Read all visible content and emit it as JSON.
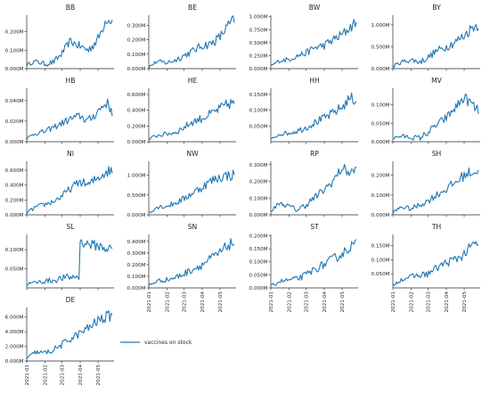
{
  "chart_data": {
    "type": "line",
    "layout": "small-multiples",
    "series_color": "#1f77b4",
    "x_tick_labels": [
      "2021-01",
      "2021-02",
      "2021-03",
      "2021-04",
      "2021-05"
    ],
    "legend": {
      "label": "vaccines on stock",
      "placement": "bottom-center"
    },
    "grid": false,
    "panels": [
      {
        "title": "BB",
        "ylim": [
          0,
          0.29
        ],
        "yticks": [
          0.0,
          0.1,
          0.2
        ],
        "yticklabels": [
          "0.000M",
          "0.100M",
          "0.200M"
        ],
        "x": [
          "2021-01-01",
          "2021-01-15",
          "2021-02-01",
          "2021-02-15",
          "2021-03-01",
          "2021-03-15",
          "2021-04-01",
          "2021-04-15",
          "2021-05-01",
          "2021-05-15",
          "2021-05-25"
        ],
        "y": [
          0.02,
          0.04,
          0.025,
          0.035,
          0.08,
          0.15,
          0.12,
          0.1,
          0.16,
          0.27,
          0.26
        ]
      },
      {
        "title": "BE",
        "ylim": [
          0,
          0.37
        ],
        "yticks": [
          0.0,
          0.1,
          0.2,
          0.3
        ],
        "yticklabels": [
          "0.000M",
          "0.100M",
          "0.200M",
          "0.300M"
        ],
        "x": [
          "2021-01-01",
          "2021-01-15",
          "2021-02-01",
          "2021-02-15",
          "2021-03-01",
          "2021-03-15",
          "2021-04-01",
          "2021-04-15",
          "2021-05-01",
          "2021-05-15",
          "2021-05-25"
        ],
        "y": [
          0.01,
          0.05,
          0.04,
          0.06,
          0.09,
          0.12,
          0.16,
          0.17,
          0.22,
          0.3,
          0.34
        ]
      },
      {
        "title": "BW",
        "ylim": [
          0,
          1.03
        ],
        "yticks": [
          0.0,
          0.25,
          0.5,
          0.75,
          1.0
        ],
        "yticklabels": [
          "0.000M",
          "0.250M",
          "0.500M",
          "0.750M",
          "1.000M"
        ],
        "x": [
          "2021-01-01",
          "2021-01-15",
          "2021-02-01",
          "2021-02-15",
          "2021-03-01",
          "2021-03-15",
          "2021-04-01",
          "2021-04-15",
          "2021-05-01",
          "2021-05-15",
          "2021-05-25"
        ],
        "y": [
          0.05,
          0.15,
          0.18,
          0.25,
          0.3,
          0.4,
          0.45,
          0.55,
          0.65,
          0.8,
          0.9
        ]
      },
      {
        "title": "BY",
        "ylim": [
          0,
          1.22
        ],
        "yticks": [
          0.0,
          0.5,
          1.0
        ],
        "yticklabels": [
          "0.000M",
          "0.500M",
          "1.000M"
        ],
        "x": [
          "2021-01-01",
          "2021-01-15",
          "2021-02-01",
          "2021-02-15",
          "2021-03-01",
          "2021-03-15",
          "2021-04-01",
          "2021-04-15",
          "2021-05-01",
          "2021-05-15",
          "2021-05-25"
        ],
        "y": [
          0.05,
          0.15,
          0.2,
          0.15,
          0.25,
          0.4,
          0.5,
          0.6,
          0.75,
          0.95,
          1.0
        ]
      },
      {
        "title": "HB",
        "ylim": [
          0,
          0.052
        ],
        "yticks": [
          0.0,
          0.02,
          0.04
        ],
        "yticklabels": [
          "0.000M",
          "0.020M",
          "0.040M"
        ],
        "x": [
          "2021-01-01",
          "2021-01-15",
          "2021-02-01",
          "2021-02-15",
          "2021-03-01",
          "2021-03-15",
          "2021-04-01",
          "2021-04-15",
          "2021-05-01",
          "2021-05-15",
          "2021-05-25"
        ],
        "y": [
          0.003,
          0.008,
          0.01,
          0.014,
          0.018,
          0.022,
          0.025,
          0.02,
          0.03,
          0.038,
          0.03
        ]
      },
      {
        "title": "HE",
        "ylim": [
          0,
          0.68
        ],
        "yticks": [
          0.0,
          0.2,
          0.4,
          0.6
        ],
        "yticklabels": [
          "0.000M",
          "0.200M",
          "0.400M",
          "0.600M"
        ],
        "x": [
          "2021-01-01",
          "2021-01-15",
          "2021-02-01",
          "2021-02-15",
          "2021-03-01",
          "2021-03-15",
          "2021-04-01",
          "2021-04-15",
          "2021-05-01",
          "2021-05-15",
          "2021-05-25"
        ],
        "y": [
          0.03,
          0.08,
          0.1,
          0.12,
          0.18,
          0.25,
          0.3,
          0.35,
          0.42,
          0.48,
          0.5
        ]
      },
      {
        "title": "HH",
        "ylim": [
          0,
          0.17
        ],
        "yticks": [
          0.05,
          0.1,
          0.15
        ],
        "yticklabels": [
          "0.050M",
          "0.100M",
          "0.150M"
        ],
        "x": [
          "2021-01-01",
          "2021-01-15",
          "2021-02-01",
          "2021-02-15",
          "2021-03-01",
          "2021-03-15",
          "2021-04-01",
          "2021-04-15",
          "2021-05-01",
          "2021-05-15",
          "2021-05-25"
        ],
        "y": [
          0.005,
          0.025,
          0.028,
          0.035,
          0.045,
          0.06,
          0.075,
          0.09,
          0.11,
          0.14,
          0.13
        ]
      },
      {
        "title": "MV",
        "ylim": [
          0,
          0.145
        ],
        "yticks": [
          0.0,
          0.05,
          0.1
        ],
        "yticklabels": [
          "0.000M",
          "0.050M",
          "0.100M"
        ],
        "x": [
          "2021-01-01",
          "2021-01-15",
          "2021-02-01",
          "2021-02-15",
          "2021-03-01",
          "2021-03-15",
          "2021-04-01",
          "2021-04-15",
          "2021-05-01",
          "2021-05-15",
          "2021-05-25"
        ],
        "y": [
          0.01,
          0.015,
          0.012,
          0.01,
          0.025,
          0.045,
          0.065,
          0.09,
          0.12,
          0.1,
          0.08
        ]
      },
      {
        "title": "NI",
        "ylim": [
          0,
          0.72
        ],
        "yticks": [
          0.0,
          0.2,
          0.4,
          0.6
        ],
        "yticklabels": [
          "0.000M",
          "0.200M",
          "0.400M",
          "0.600M"
        ],
        "x": [
          "2021-01-01",
          "2021-01-15",
          "2021-02-01",
          "2021-02-15",
          "2021-03-01",
          "2021-03-15",
          "2021-04-01",
          "2021-04-15",
          "2021-05-01",
          "2021-05-15",
          "2021-05-25"
        ],
        "y": [
          0.02,
          0.1,
          0.14,
          0.18,
          0.25,
          0.35,
          0.45,
          0.4,
          0.5,
          0.58,
          0.6
        ]
      },
      {
        "title": "NW",
        "ylim": [
          0,
          1.35
        ],
        "yticks": [
          0.0,
          0.5,
          1.0
        ],
        "yticklabels": [
          "0.000M",
          "0.500M",
          "1.000M"
        ],
        "x": [
          "2021-01-01",
          "2021-01-15",
          "2021-02-01",
          "2021-02-15",
          "2021-03-01",
          "2021-03-15",
          "2021-04-01",
          "2021-04-15",
          "2021-05-01",
          "2021-05-15",
          "2021-05-25"
        ],
        "y": [
          0.05,
          0.2,
          0.22,
          0.3,
          0.4,
          0.55,
          0.7,
          0.85,
          0.95,
          1.0,
          1.0
        ]
      },
      {
        "title": "RP",
        "ylim": [
          0,
          0.32
        ],
        "yticks": [
          0.0,
          0.1,
          0.2,
          0.3
        ],
        "yticklabels": [
          "0.000M",
          "0.100M",
          "0.200M",
          "0.300M"
        ],
        "x": [
          "2021-01-01",
          "2021-01-15",
          "2021-02-01",
          "2021-02-15",
          "2021-03-01",
          "2021-03-15",
          "2021-04-01",
          "2021-04-15",
          "2021-05-01",
          "2021-05-15",
          "2021-05-25"
        ],
        "y": [
          0.02,
          0.07,
          0.05,
          0.03,
          0.06,
          0.1,
          0.15,
          0.2,
          0.28,
          0.25,
          0.27
        ]
      },
      {
        "title": "SH",
        "ylim": [
          0,
          0.27
        ],
        "yticks": [
          0.0,
          0.1,
          0.2
        ],
        "yticklabels": [
          "0.000M",
          "0.100M",
          "0.200M"
        ],
        "x": [
          "2021-01-01",
          "2021-01-15",
          "2021-02-01",
          "2021-02-15",
          "2021-03-01",
          "2021-03-15",
          "2021-04-01",
          "2021-04-15",
          "2021-05-01",
          "2021-05-15",
          "2021-05-25"
        ],
        "y": [
          0.01,
          0.04,
          0.03,
          0.05,
          0.07,
          0.1,
          0.13,
          0.16,
          0.2,
          0.22,
          0.21
        ]
      },
      {
        "title": "SL",
        "ylim": [
          0,
          0.14
        ],
        "yticks": [
          0.05,
          0.1
        ],
        "yticklabels": [
          "0.050M",
          "0.100M"
        ],
        "x": [
          "2021-01-01",
          "2021-01-15",
          "2021-02-01",
          "2021-02-15",
          "2021-03-01",
          "2021-03-15",
          "2021-03-31",
          "2021-04-01",
          "2021-04-15",
          "2021-05-01",
          "2021-05-25"
        ],
        "y": [
          0.01,
          0.014,
          0.018,
          0.02,
          0.025,
          0.028,
          0.03,
          0.12,
          0.115,
          0.11,
          0.1
        ]
      },
      {
        "title": "SN",
        "ylim": [
          0,
          0.46
        ],
        "yticks": [
          0.0,
          0.1,
          0.2,
          0.3,
          0.4
        ],
        "yticklabels": [
          "0.000M",
          "0.100M",
          "0.200M",
          "0.300M",
          "0.400M"
        ],
        "x": [
          "2021-01-01",
          "2021-01-15",
          "2021-02-01",
          "2021-02-15",
          "2021-03-01",
          "2021-03-15",
          "2021-04-01",
          "2021-04-15",
          "2021-05-01",
          "2021-05-15",
          "2021-05-25"
        ],
        "y": [
          0.02,
          0.06,
          0.07,
          0.09,
          0.12,
          0.16,
          0.2,
          0.25,
          0.3,
          0.37,
          0.39
        ]
      },
      {
        "title": "ST",
        "ylim": [
          0,
          0.205
        ],
        "yticks": [
          0.0,
          0.05,
          0.1,
          0.15,
          0.2
        ],
        "yticklabels": [
          "0.000M",
          "0.050M",
          "0.100M",
          "0.150M",
          "0.200M"
        ],
        "x": [
          "2021-01-01",
          "2021-01-15",
          "2021-02-01",
          "2021-02-15",
          "2021-03-01",
          "2021-03-15",
          "2021-04-01",
          "2021-04-15",
          "2021-05-01",
          "2021-05-15",
          "2021-05-25"
        ],
        "y": [
          0.005,
          0.025,
          0.03,
          0.035,
          0.05,
          0.07,
          0.09,
          0.11,
          0.13,
          0.16,
          0.17
        ]
      },
      {
        "title": "TH",
        "ylim": [
          0,
          0.19
        ],
        "yticks": [
          0.05,
          0.1,
          0.15
        ],
        "yticklabels": [
          "0.050M",
          "0.100M",
          "0.150M"
        ],
        "x": [
          "2021-01-01",
          "2021-01-15",
          "2021-02-01",
          "2021-02-15",
          "2021-03-01",
          "2021-03-15",
          "2021-04-01",
          "2021-04-15",
          "2021-05-01",
          "2021-05-15",
          "2021-05-25"
        ],
        "y": [
          0.01,
          0.03,
          0.04,
          0.045,
          0.05,
          0.07,
          0.09,
          0.1,
          0.12,
          0.15,
          0.16
        ]
      },
      {
        "title": "DE",
        "ylim": [
          0,
          7.3
        ],
        "yticks": [
          0.0,
          2.0,
          4.0,
          6.0
        ],
        "yticklabels": [
          "0.000M",
          "2.000M",
          "4.000M",
          "6.000M"
        ],
        "x": [
          "2021-01-01",
          "2021-01-15",
          "2021-02-01",
          "2021-02-15",
          "2021-03-01",
          "2021-03-15",
          "2021-04-01",
          "2021-04-15",
          "2021-05-01",
          "2021-05-15",
          "2021-05-25"
        ],
        "y": [
          0.3,
          1.2,
          1.1,
          1.5,
          2.2,
          3.0,
          3.8,
          4.5,
          5.5,
          6.0,
          6.3
        ]
      }
    ]
  }
}
